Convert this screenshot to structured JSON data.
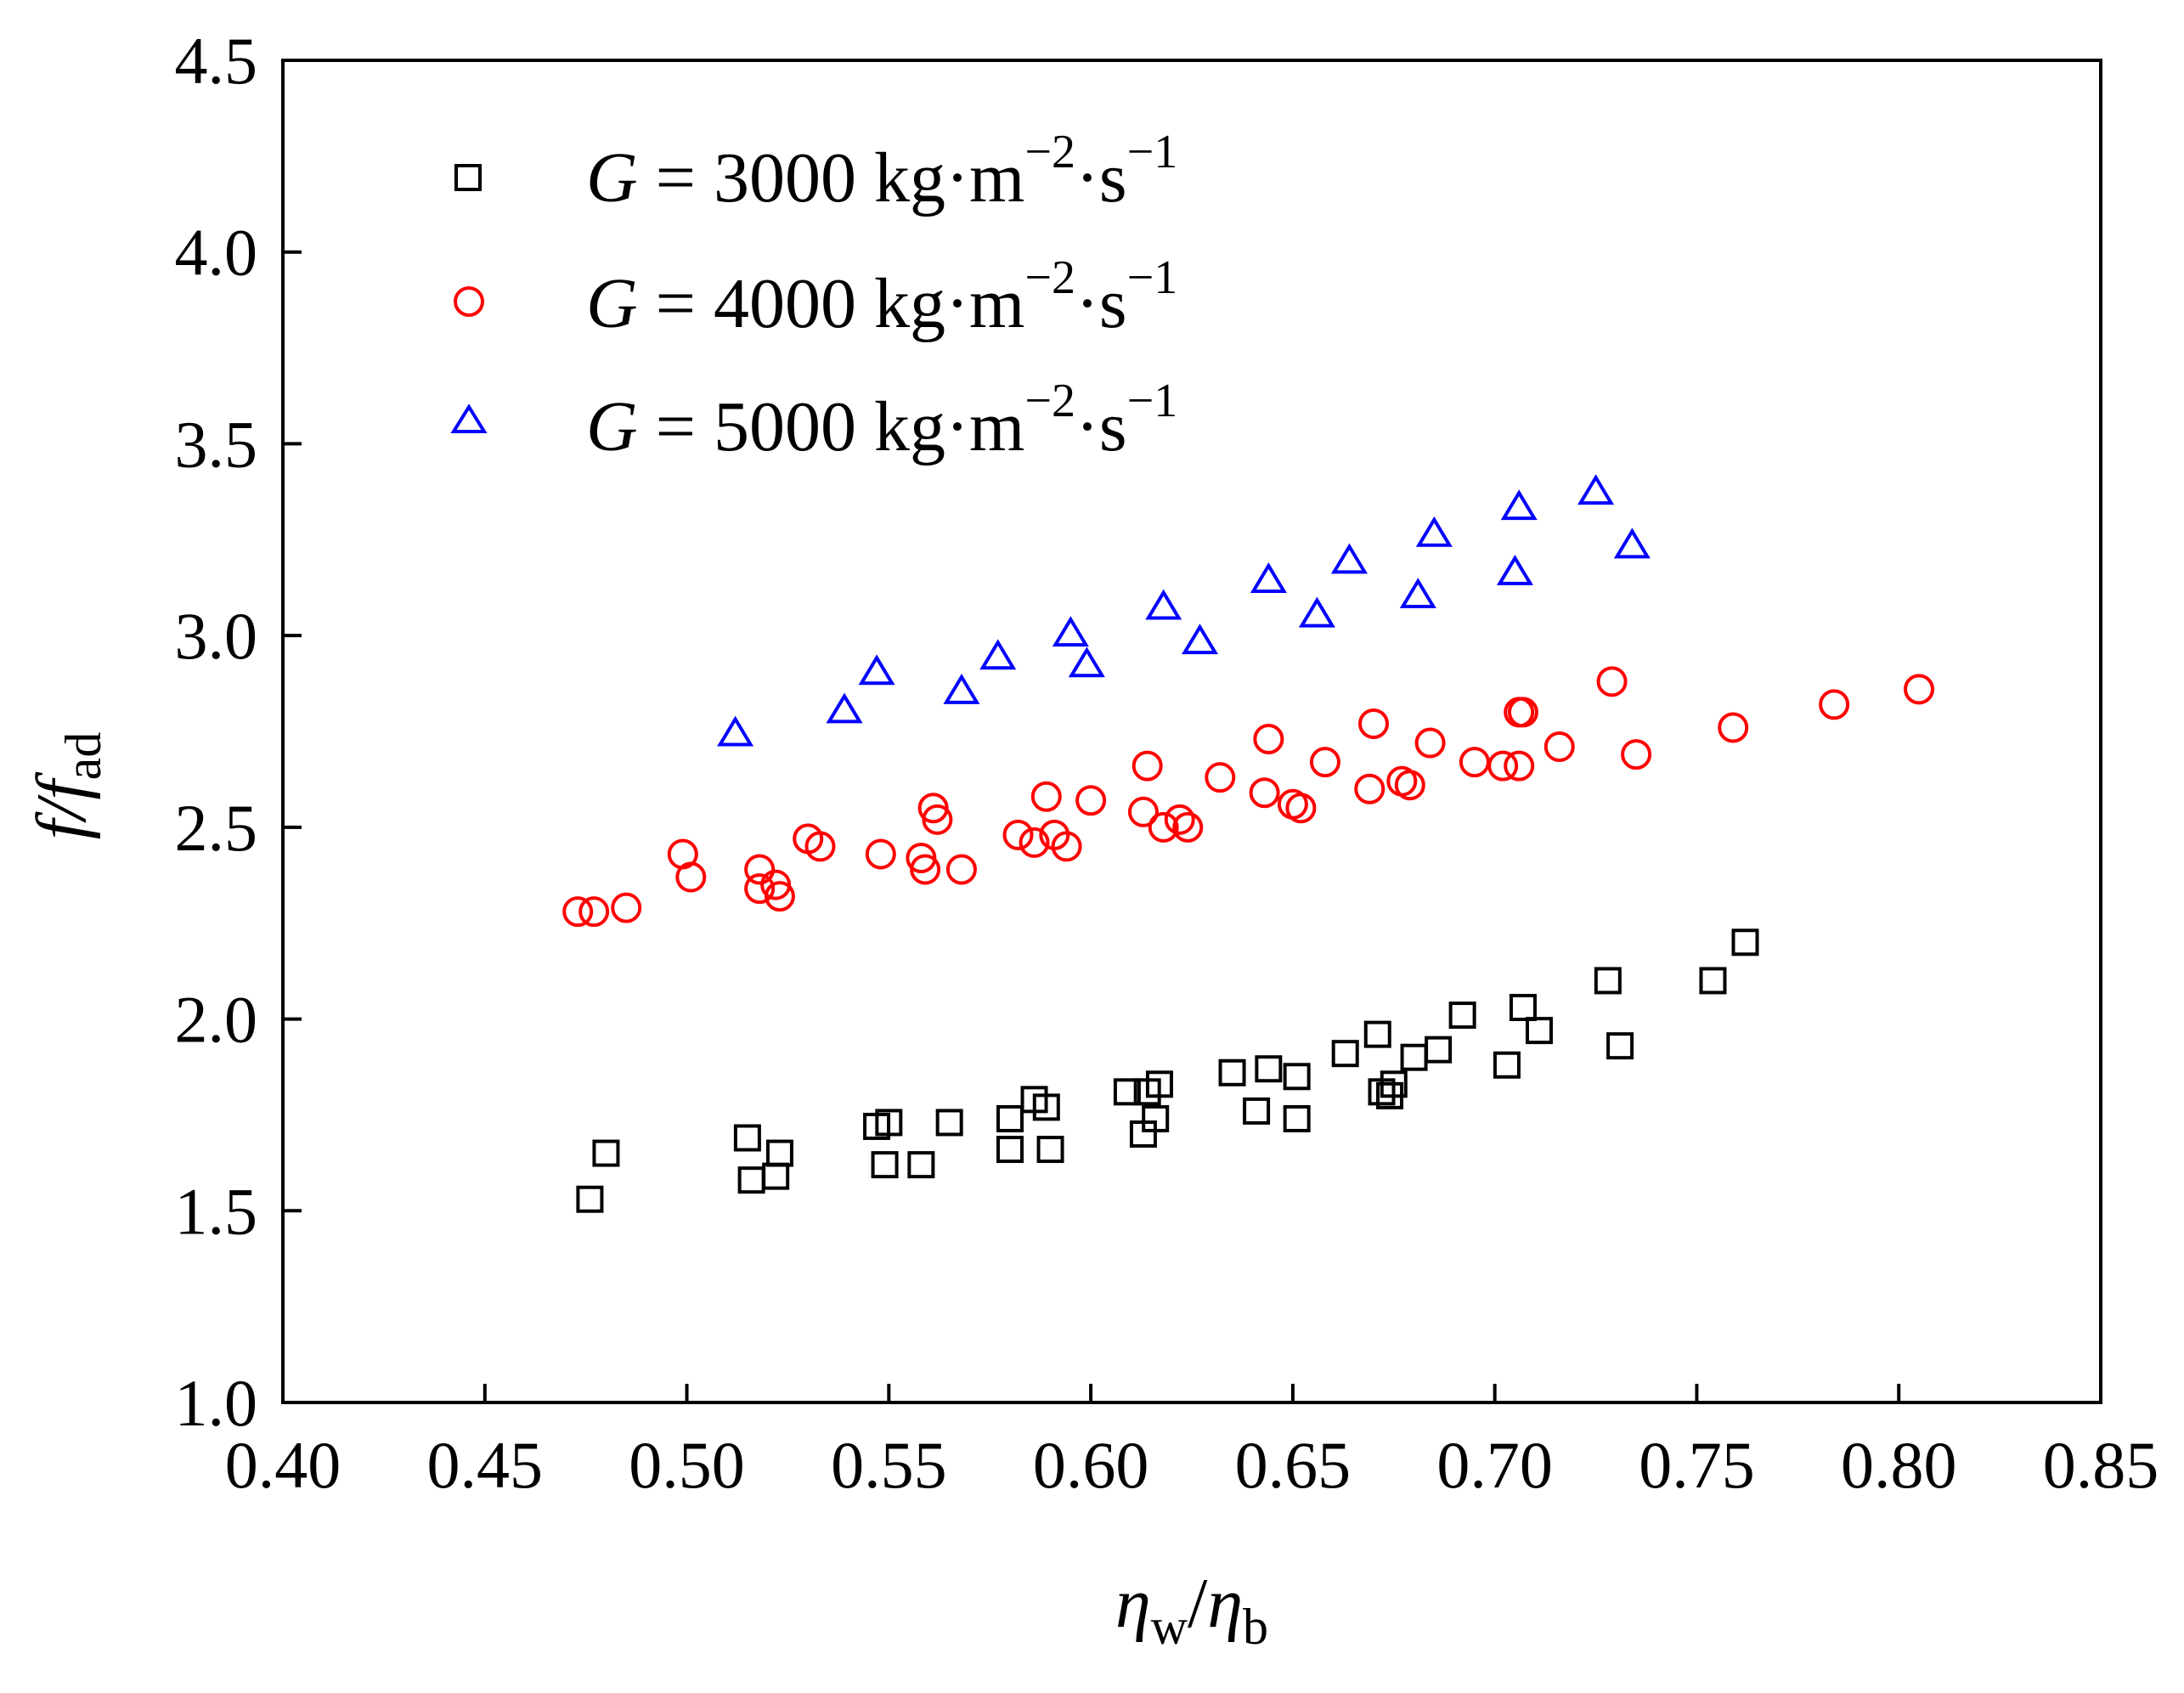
{
  "chart_data": {
    "type": "scatter",
    "title": "",
    "xlabel": {
      "main": "η",
      "sub1": "w",
      "sep": "/",
      "main2": "η",
      "sub2": "b"
    },
    "ylabel": {
      "main": "f",
      "sep": "/",
      "main2": "f",
      "sub": "ad"
    },
    "xlim": [
      0.4,
      0.85
    ],
    "ylim": [
      1.0,
      4.5
    ],
    "xticks": [
      "0.40",
      "0.45",
      "0.50",
      "0.55",
      "0.60",
      "0.65",
      "0.70",
      "0.75",
      "0.80",
      "0.85"
    ],
    "yticks": [
      "1.0",
      "1.5",
      "2.0",
      "2.5",
      "3.0",
      "3.5",
      "4.0",
      "4.5"
    ],
    "grid": false,
    "legend_position": "top-left",
    "series": [
      {
        "name": "G = 3000 kg·m⁻²·s⁻¹",
        "label": {
          "g": "G",
          "eq": " = 3000 kg·m",
          "sup1": "−2",
          "mid": "·s",
          "sup2": "−1"
        },
        "marker": "square",
        "color": "#000000",
        "points": [
          [
            0.476,
            1.53
          ],
          [
            0.48,
            1.65
          ],
          [
            0.515,
            1.69
          ],
          [
            0.516,
            1.58
          ],
          [
            0.522,
            1.59
          ],
          [
            0.523,
            1.65
          ],
          [
            0.547,
            1.72
          ],
          [
            0.549,
            1.62
          ],
          [
            0.55,
            1.73
          ],
          [
            0.558,
            1.62
          ],
          [
            0.565,
            1.73
          ],
          [
            0.58,
            1.66
          ],
          [
            0.58,
            1.74
          ],
          [
            0.586,
            1.79
          ],
          [
            0.589,
            1.77
          ],
          [
            0.59,
            1.66
          ],
          [
            0.609,
            1.81
          ],
          [
            0.613,
            1.7
          ],
          [
            0.614,
            1.81
          ],
          [
            0.616,
            1.74
          ],
          [
            0.617,
            1.83
          ],
          [
            0.635,
            1.86
          ],
          [
            0.641,
            1.76
          ],
          [
            0.644,
            1.87
          ],
          [
            0.651,
            1.85
          ],
          [
            0.651,
            1.74
          ],
          [
            0.663,
            1.91
          ],
          [
            0.671,
            1.96
          ],
          [
            0.672,
            1.81
          ],
          [
            0.674,
            1.8
          ],
          [
            0.675,
            1.83
          ],
          [
            0.68,
            1.9
          ],
          [
            0.686,
            1.92
          ],
          [
            0.692,
            2.01
          ],
          [
            0.703,
            1.88
          ],
          [
            0.707,
            2.03
          ],
          [
            0.711,
            1.97
          ],
          [
            0.728,
            2.1
          ],
          [
            0.731,
            1.93
          ],
          [
            0.754,
            2.1
          ],
          [
            0.762,
            2.2
          ]
        ]
      },
      {
        "name": "G = 4000 kg·m⁻²·s⁻¹",
        "label": {
          "g": "G",
          "eq": " = 4000 kg·m",
          "sup1": "−2",
          "mid": "·s",
          "sup2": "−1"
        },
        "marker": "circle",
        "color": "#ff0000",
        "points": [
          [
            0.473,
            2.28
          ],
          [
            0.477,
            2.28
          ],
          [
            0.485,
            2.29
          ],
          [
            0.499,
            2.43
          ],
          [
            0.501,
            2.37
          ],
          [
            0.518,
            2.39
          ],
          [
            0.518,
            2.34
          ],
          [
            0.522,
            2.35
          ],
          [
            0.523,
            2.32
          ],
          [
            0.53,
            2.47
          ],
          [
            0.533,
            2.45
          ],
          [
            0.548,
            2.43
          ],
          [
            0.558,
            2.42
          ],
          [
            0.559,
            2.39
          ],
          [
            0.561,
            2.55
          ],
          [
            0.562,
            2.52
          ],
          [
            0.568,
            2.39
          ],
          [
            0.582,
            2.48
          ],
          [
            0.586,
            2.46
          ],
          [
            0.589,
            2.58
          ],
          [
            0.591,
            2.48
          ],
          [
            0.594,
            2.45
          ],
          [
            0.6,
            2.57
          ],
          [
            0.613,
            2.54
          ],
          [
            0.614,
            2.66
          ],
          [
            0.618,
            2.5
          ],
          [
            0.622,
            2.52
          ],
          [
            0.624,
            2.5
          ],
          [
            0.632,
            2.63
          ],
          [
            0.643,
            2.59
          ],
          [
            0.644,
            2.73
          ],
          [
            0.65,
            2.56
          ],
          [
            0.652,
            2.55
          ],
          [
            0.658,
            2.67
          ],
          [
            0.669,
            2.6
          ],
          [
            0.67,
            2.77
          ],
          [
            0.677,
            2.62
          ],
          [
            0.679,
            2.61
          ],
          [
            0.684,
            2.72
          ],
          [
            0.695,
            2.67
          ],
          [
            0.702,
            2.66
          ],
          [
            0.706,
            2.66
          ],
          [
            0.706,
            2.8
          ],
          [
            0.707,
            2.8
          ],
          [
            0.716,
            2.71
          ],
          [
            0.729,
            2.88
          ],
          [
            0.735,
            2.69
          ],
          [
            0.759,
            2.76
          ],
          [
            0.784,
            2.82
          ],
          [
            0.805,
            2.86
          ]
        ]
      },
      {
        "name": "G = 5000 kg·m⁻²·s⁻¹",
        "label": {
          "g": "G",
          "eq": " = 5000 kg·m",
          "sup1": "−2",
          "mid": "·s",
          "sup2": "−1"
        },
        "marker": "triangle",
        "color": "#0000ff",
        "points": [
          [
            0.512,
            2.74
          ],
          [
            0.539,
            2.8
          ],
          [
            0.547,
            2.9
          ],
          [
            0.568,
            2.85
          ],
          [
            0.577,
            2.94
          ],
          [
            0.595,
            3.0
          ],
          [
            0.599,
            2.92
          ],
          [
            0.618,
            3.07
          ],
          [
            0.627,
            2.98
          ],
          [
            0.644,
            3.14
          ],
          [
            0.656,
            3.05
          ],
          [
            0.664,
            3.19
          ],
          [
            0.681,
            3.1
          ],
          [
            0.685,
            3.26
          ],
          [
            0.705,
            3.16
          ],
          [
            0.706,
            3.33
          ],
          [
            0.725,
            3.37
          ],
          [
            0.734,
            3.23
          ]
        ]
      }
    ]
  }
}
